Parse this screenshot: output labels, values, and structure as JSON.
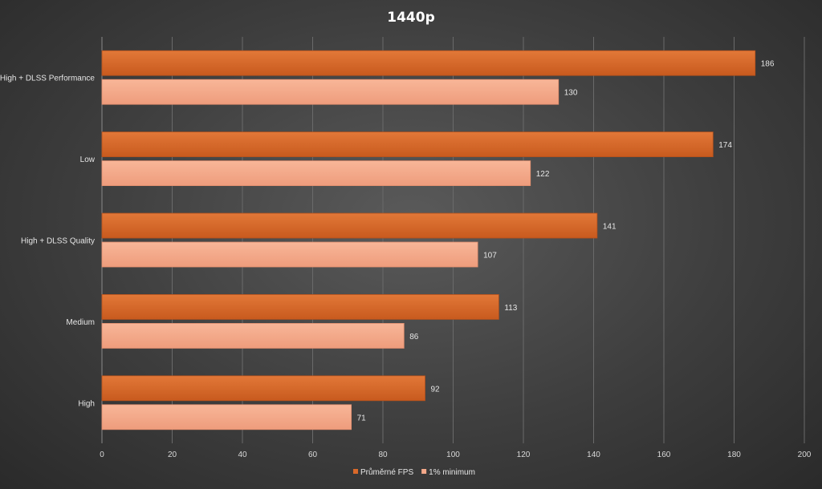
{
  "chart_data": {
    "type": "bar",
    "orientation": "horizontal",
    "title": "1440p",
    "xlabel": "",
    "ylabel": "",
    "categories": [
      "High + DLSS Performance",
      "Low",
      "High + DLSS Quality",
      "Medium",
      "High"
    ],
    "series": [
      {
        "name": "Průměrné FPS",
        "color": "#d9692a",
        "values": [
          186,
          174,
          141,
          113,
          92
        ]
      },
      {
        "name": "1% minimum",
        "color": "#f4a98a",
        "values": [
          130,
          122,
          107,
          86,
          71
        ]
      }
    ],
    "xlim": [
      0,
      200
    ],
    "xticks": [
      0,
      20,
      40,
      60,
      80,
      100,
      120,
      140,
      160,
      180,
      200
    ],
    "grid": true,
    "legend_position": "bottom"
  }
}
